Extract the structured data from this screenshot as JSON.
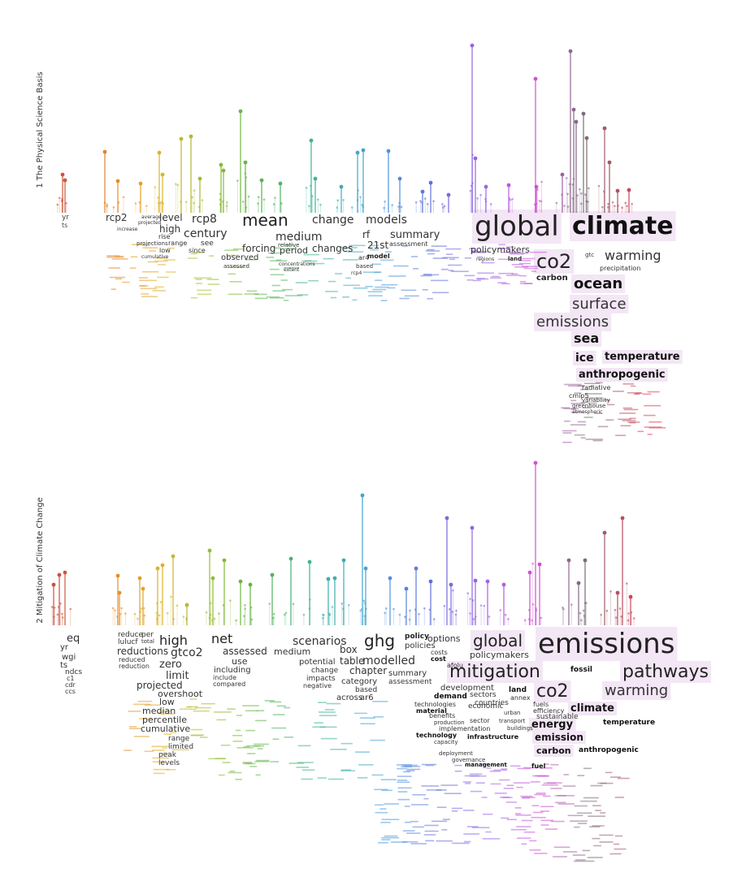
{
  "panels": [
    {
      "id": "wg1",
      "title": "1 The Physical Science Basis",
      "words": [
        {
          "text": "yr",
          "size": 9,
          "color": "#444444"
        },
        {
          "text": "ts",
          "size": 8,
          "color": "#444444"
        },
        {
          "text": "rcp2",
          "size": 12,
          "color": "#333333"
        },
        {
          "text": "level",
          "size": 12,
          "color": "#333333"
        },
        {
          "text": "high",
          "size": 12,
          "color": "#333333"
        },
        {
          "text": "rcp8",
          "size": 14,
          "color": "#333333"
        },
        {
          "text": "century",
          "size": 14,
          "color": "#333333"
        },
        {
          "text": "mean",
          "size": 20,
          "color": "#222222"
        },
        {
          "text": "change",
          "size": 14,
          "color": "#333333"
        },
        {
          "text": "models",
          "size": 14,
          "color": "#333333"
        },
        {
          "text": "medium",
          "size": 14,
          "color": "#333333"
        },
        {
          "text": "forcing",
          "size": 12,
          "color": "#333333"
        },
        {
          "text": "period",
          "size": 11,
          "color": "#333333"
        },
        {
          "text": "changes",
          "size": 12,
          "color": "#333333"
        },
        {
          "text": "rf",
          "size": 12,
          "color": "#333333"
        },
        {
          "text": "21st",
          "size": 12,
          "color": "#333333"
        },
        {
          "text": "summary",
          "size": 13,
          "color": "#333333"
        },
        {
          "text": "observed",
          "size": 10,
          "color": "#333333"
        },
        {
          "text": "global",
          "size": 34,
          "color": "#222222"
        },
        {
          "text": "climate",
          "size": 30,
          "color": "#111111",
          "bold": true
        },
        {
          "text": "co2",
          "size": 24,
          "color": "#222222"
        },
        {
          "text": "warming",
          "size": 16,
          "color": "#333333"
        },
        {
          "text": "carbon",
          "size": 10,
          "color": "#222222",
          "bold": true
        },
        {
          "text": "ocean",
          "size": 18,
          "color": "#111111",
          "bold": true
        },
        {
          "text": "surface",
          "size": 18,
          "color": "#333333"
        },
        {
          "text": "emissions",
          "size": 18,
          "color": "#333333"
        },
        {
          "text": "sea",
          "size": 16,
          "color": "#111111",
          "bold": true
        },
        {
          "text": "ice",
          "size": 14,
          "color": "#111111",
          "bold": true
        },
        {
          "text": "temperature",
          "size": 13,
          "color": "#111111",
          "bold": true
        },
        {
          "text": "anthropogenic",
          "size": 13,
          "color": "#111111",
          "bold": true
        },
        {
          "text": "policymakers",
          "size": 11,
          "color": "#333333"
        },
        {
          "text": "see",
          "size": 9,
          "color": "#333333"
        },
        {
          "text": "since",
          "size": 8,
          "color": "#333333"
        },
        {
          "text": "range",
          "size": 8,
          "color": "#333333"
        },
        {
          "text": "rise",
          "size": 8,
          "color": "#333333"
        },
        {
          "text": "low",
          "size": 8,
          "color": "#333333"
        },
        {
          "text": "projections",
          "size": 7,
          "color": "#333333"
        },
        {
          "text": "assessed",
          "size": 7,
          "color": "#333333"
        },
        {
          "text": "relative",
          "size": 7,
          "color": "#333333"
        },
        {
          "text": "concentrations",
          "size": 6,
          "color": "#333333"
        },
        {
          "text": "extent",
          "size": 6,
          "color": "#333333"
        },
        {
          "text": "assessment",
          "size": 8,
          "color": "#333333"
        },
        {
          "text": "model",
          "size": 8,
          "color": "#222222",
          "bold": true
        },
        {
          "text": "ar4",
          "size": 8,
          "color": "#333333"
        },
        {
          "text": "based",
          "size": 7,
          "color": "#333333"
        },
        {
          "text": "rcp4",
          "size": 6,
          "color": "#333333"
        },
        {
          "text": "land",
          "size": 7,
          "color": "#222222",
          "bold": true
        },
        {
          "text": "regions",
          "size": 6,
          "color": "#333333"
        },
        {
          "text": "gtc",
          "size": 7,
          "color": "#333333"
        },
        {
          "text": "precipitation",
          "size": 8,
          "color": "#333333"
        },
        {
          "text": "radiative",
          "size": 8,
          "color": "#333333"
        },
        {
          "text": "cmip5",
          "size": 8,
          "color": "#333333"
        },
        {
          "text": "variability",
          "size": 7,
          "color": "#333333"
        },
        {
          "text": "greenhouse",
          "size": 7,
          "color": "#333333"
        },
        {
          "text": "atmospheric",
          "size": 6,
          "color": "#333333"
        },
        {
          "text": "increase",
          "size": 6,
          "color": "#333333"
        },
        {
          "text": "average",
          "size": 6,
          "color": "#333333"
        },
        {
          "text": "projected",
          "size": 6,
          "color": "#333333"
        },
        {
          "text": "cumulative",
          "size": 6,
          "color": "#333333"
        }
      ]
    },
    {
      "id": "wg3",
      "title": "2 Mitigation of Climate Change",
      "words": [
        {
          "text": "eq",
          "size": 13,
          "color": "#333333"
        },
        {
          "text": "yr",
          "size": 10,
          "color": "#333333"
        },
        {
          "text": "wgi",
          "size": 10,
          "color": "#333333"
        },
        {
          "text": "ts",
          "size": 10,
          "color": "#333333"
        },
        {
          "text": "ndcs",
          "size": 9,
          "color": "#333333"
        },
        {
          "text": "c1",
          "size": 8,
          "color": "#333333"
        },
        {
          "text": "cdr",
          "size": 8,
          "color": "#333333"
        },
        {
          "text": "ccs",
          "size": 8,
          "color": "#333333"
        },
        {
          "text": "reduce",
          "size": 9,
          "color": "#333333"
        },
        {
          "text": "lulucf",
          "size": 9,
          "color": "#333333"
        },
        {
          "text": "reductions",
          "size": 12,
          "color": "#333333"
        },
        {
          "text": "reduced",
          "size": 8,
          "color": "#333333"
        },
        {
          "text": "reduction",
          "size": 8,
          "color": "#333333"
        },
        {
          "text": "per",
          "size": 9,
          "color": "#333333"
        },
        {
          "text": "total",
          "size": 7,
          "color": "#333333"
        },
        {
          "text": "high",
          "size": 16,
          "color": "#222222"
        },
        {
          "text": "gtco2",
          "size": 14,
          "color": "#333333"
        },
        {
          "text": "zero",
          "size": 13,
          "color": "#333333"
        },
        {
          "text": "limit",
          "size": 13,
          "color": "#333333"
        },
        {
          "text": "projected",
          "size": 12,
          "color": "#333333"
        },
        {
          "text": "overshoot",
          "size": 11,
          "color": "#333333"
        },
        {
          "text": "low",
          "size": 11,
          "color": "#333333"
        },
        {
          "text": "median",
          "size": 11,
          "color": "#333333"
        },
        {
          "text": "percentile",
          "size": 11,
          "color": "#333333"
        },
        {
          "text": "cumulative",
          "size": 11,
          "color": "#333333"
        },
        {
          "text": "range",
          "size": 9,
          "color": "#333333"
        },
        {
          "text": "limited",
          "size": 9,
          "color": "#333333"
        },
        {
          "text": "peak",
          "size": 9,
          "color": "#333333"
        },
        {
          "text": "levels",
          "size": 9,
          "color": "#333333"
        },
        {
          "text": "net",
          "size": 16,
          "color": "#222222"
        },
        {
          "text": "assessed",
          "size": 12,
          "color": "#333333"
        },
        {
          "text": "use",
          "size": 11,
          "color": "#333333"
        },
        {
          "text": "including",
          "size": 10,
          "color": "#333333"
        },
        {
          "text": "include",
          "size": 8,
          "color": "#333333"
        },
        {
          "text": "compared",
          "size": 8,
          "color": "#333333"
        },
        {
          "text": "scenarios",
          "size": 14,
          "color": "#333333"
        },
        {
          "text": "medium",
          "size": 11,
          "color": "#333333"
        },
        {
          "text": "potential",
          "size": 10,
          "color": "#333333"
        },
        {
          "text": "change",
          "size": 9,
          "color": "#333333"
        },
        {
          "text": "impacts",
          "size": 9,
          "color": "#333333"
        },
        {
          "text": "negative",
          "size": 8,
          "color": "#333333"
        },
        {
          "text": "box",
          "size": 12,
          "color": "#333333"
        },
        {
          "text": "table",
          "size": 12,
          "color": "#333333"
        },
        {
          "text": "ghg",
          "size": 20,
          "color": "#222222"
        },
        {
          "text": "modelled",
          "size": 14,
          "color": "#333333"
        },
        {
          "text": "chapter",
          "size": 12,
          "color": "#333333"
        },
        {
          "text": "category",
          "size": 10,
          "color": "#333333"
        },
        {
          "text": "based",
          "size": 9,
          "color": "#333333"
        },
        {
          "text": "across",
          "size": 10,
          "color": "#333333"
        },
        {
          "text": "ar6",
          "size": 10,
          "color": "#333333"
        },
        {
          "text": "summary",
          "size": 10,
          "color": "#333333"
        },
        {
          "text": "assessment",
          "size": 9,
          "color": "#333333"
        },
        {
          "text": "policy",
          "size": 9,
          "color": "#222222",
          "bold": true
        },
        {
          "text": "policies",
          "size": 10,
          "color": "#333333"
        },
        {
          "text": "options",
          "size": 11,
          "color": "#333333"
        },
        {
          "text": "global",
          "size": 20,
          "color": "#222222"
        },
        {
          "text": "policymakers",
          "size": 11,
          "color": "#333333"
        },
        {
          "text": "mitigation",
          "size": 22,
          "color": "#222222"
        },
        {
          "text": "emissions",
          "size": 34,
          "color": "#222222"
        },
        {
          "text": "pathways",
          "size": 22,
          "color": "#222222"
        },
        {
          "text": "co2",
          "size": 22,
          "color": "#222222"
        },
        {
          "text": "warming",
          "size": 18,
          "color": "#333333"
        },
        {
          "text": "climate",
          "size": 13,
          "color": "#111111",
          "bold": true
        },
        {
          "text": "energy",
          "size": 13,
          "color": "#111111",
          "bold": true
        },
        {
          "text": "emission",
          "size": 12,
          "color": "#111111",
          "bold": true
        },
        {
          "text": "carbon",
          "size": 11,
          "color": "#111111",
          "bold": true
        },
        {
          "text": "temperature",
          "size": 9,
          "color": "#111111",
          "bold": true
        },
        {
          "text": "anthropogenic",
          "size": 9,
          "color": "#111111",
          "bold": true
        },
        {
          "text": "fossil",
          "size": 9,
          "color": "#111111",
          "bold": true
        },
        {
          "text": "land",
          "size": 9,
          "color": "#111111",
          "bold": true
        },
        {
          "text": "sustainable",
          "size": 9,
          "color": "#333333"
        },
        {
          "text": "fuels",
          "size": 8,
          "color": "#333333"
        },
        {
          "text": "fuel",
          "size": 8,
          "color": "#111111",
          "bold": true
        },
        {
          "text": "efficiency",
          "size": 8,
          "color": "#333333"
        },
        {
          "text": "development",
          "size": 10,
          "color": "#333333"
        },
        {
          "text": "demand",
          "size": 9,
          "color": "#111111",
          "bold": true
        },
        {
          "text": "sectors",
          "size": 9,
          "color": "#333333"
        },
        {
          "text": "countries",
          "size": 9,
          "color": "#333333"
        },
        {
          "text": "economic",
          "size": 9,
          "color": "#333333"
        },
        {
          "text": "sector",
          "size": 8,
          "color": "#333333"
        },
        {
          "text": "implementation",
          "size": 8,
          "color": "#333333"
        },
        {
          "text": "infrastructure",
          "size": 8,
          "color": "#111111",
          "bold": true
        },
        {
          "text": "technology",
          "size": 8,
          "color": "#111111",
          "bold": true
        },
        {
          "text": "technologies",
          "size": 8,
          "color": "#333333"
        },
        {
          "text": "material",
          "size": 8,
          "color": "#111111",
          "bold": true
        },
        {
          "text": "benefits",
          "size": 8,
          "color": "#333333"
        },
        {
          "text": "production",
          "size": 7,
          "color": "#333333"
        },
        {
          "text": "capacity",
          "size": 7,
          "color": "#333333"
        },
        {
          "text": "deployment",
          "size": 7,
          "color": "#333333"
        },
        {
          "text": "governance",
          "size": 7,
          "color": "#333333"
        },
        {
          "text": "management",
          "size": 7,
          "color": "#111111",
          "bold": true
        },
        {
          "text": "annex",
          "size": 8,
          "color": "#333333"
        },
        {
          "text": "urban",
          "size": 7,
          "color": "#333333"
        },
        {
          "text": "transport",
          "size": 7,
          "color": "#333333"
        },
        {
          "text": "buildings",
          "size": 7,
          "color": "#333333"
        },
        {
          "text": "costs",
          "size": 8,
          "color": "#333333"
        },
        {
          "text": "cost",
          "size": 8,
          "color": "#111111",
          "bold": true
        },
        {
          "text": "afolu",
          "size": 8,
          "color": "#333333"
        }
      ]
    }
  ]
}
